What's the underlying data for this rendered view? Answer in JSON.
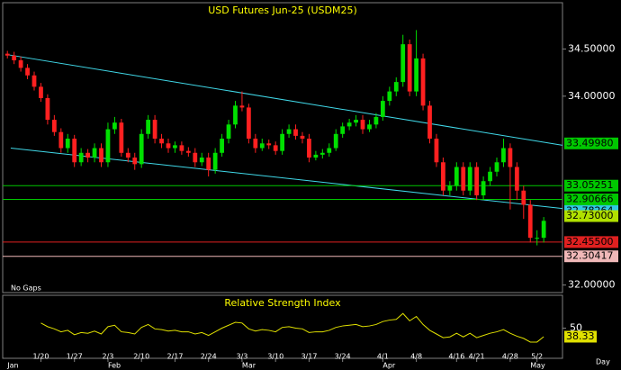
{
  "chart_data": {
    "type": "candlestick",
    "title": "USD Futures Jun-25 (USDM25)",
    "note": "No Gaps",
    "x_axis_label": "Day",
    "categories": [
      null,
      null,
      null,
      null,
      null,
      "1/20",
      null,
      null,
      null,
      null,
      "1/27",
      null,
      null,
      null,
      null,
      "2/3",
      null,
      null,
      null,
      null,
      "2/10",
      null,
      null,
      null,
      null,
      "2/17",
      null,
      null,
      null,
      null,
      "2/24",
      null,
      null,
      null,
      null,
      "3/3",
      null,
      null,
      null,
      null,
      "3/10",
      null,
      null,
      null,
      null,
      "3/17",
      null,
      null,
      null,
      null,
      "3/24",
      null,
      null,
      null,
      null,
      null,
      "4/1",
      null,
      null,
      null,
      null,
      "4/8",
      null,
      null,
      null,
      null,
      null,
      "4/16",
      null,
      null,
      "4/21",
      null,
      null,
      null,
      null,
      "4/28",
      null,
      null,
      null,
      "5/2",
      null
    ],
    "month_categories": [
      "Jan",
      null,
      null,
      null,
      null,
      null,
      null,
      null,
      null,
      null,
      null,
      null,
      null,
      null,
      null,
      "Feb",
      null,
      null,
      null,
      null,
      null,
      null,
      null,
      null,
      null,
      null,
      null,
      null,
      null,
      null,
      null,
      null,
      null,
      null,
      null,
      "Mar",
      null,
      null,
      null,
      null,
      null,
      null,
      null,
      null,
      null,
      null,
      null,
      null,
      null,
      null,
      null,
      null,
      null,
      null,
      null,
      null,
      "Apr",
      null,
      null,
      null,
      null,
      null,
      null,
      null,
      null,
      null,
      null,
      null,
      null,
      null,
      null,
      null,
      null,
      null,
      null,
      null,
      null,
      null,
      "May",
      null,
      null
    ],
    "open": [
      34.45,
      34.43,
      34.38,
      34.3,
      34.22,
      34.1,
      33.98,
      33.75,
      33.62,
      33.45,
      33.55,
      33.3,
      33.4,
      33.35,
      33.45,
      33.3,
      33.65,
      33.72,
      33.4,
      33.35,
      33.28,
      33.6,
      33.75,
      33.55,
      33.5,
      33.45,
      33.48,
      33.42,
      33.4,
      33.3,
      33.35,
      33.22,
      33.4,
      33.55,
      33.7,
      33.9,
      33.88,
      33.55,
      33.45,
      33.5,
      33.48,
      33.42,
      33.6,
      33.65,
      33.58,
      33.55,
      33.35,
      33.38,
      33.4,
      33.45,
      33.6,
      33.68,
      33.72,
      33.75,
      33.65,
      33.7,
      33.78,
      33.95,
      34.05,
      34.15,
      34.55,
      34.05,
      34.4,
      33.9,
      33.55,
      33.3,
      33.0,
      33.05,
      33.25,
      33.0,
      33.25,
      32.95,
      33.1,
      33.2,
      33.3,
      33.45,
      33.25,
      33.0,
      32.85,
      32.5,
      32.5
    ],
    "high": [
      34.48,
      34.47,
      34.42,
      34.34,
      34.26,
      34.14,
      34.02,
      33.8,
      33.66,
      33.6,
      33.59,
      33.45,
      33.44,
      33.5,
      33.5,
      33.72,
      33.78,
      33.76,
      33.45,
      33.4,
      33.65,
      33.8,
      33.8,
      33.6,
      33.55,
      33.52,
      33.52,
      33.46,
      33.45,
      33.4,
      33.4,
      33.45,
      33.6,
      33.75,
      33.95,
      34.05,
      33.92,
      33.6,
      33.55,
      33.54,
      33.52,
      33.65,
      33.7,
      33.7,
      33.62,
      33.6,
      33.42,
      33.44,
      33.5,
      33.65,
      33.72,
      33.76,
      33.8,
      33.8,
      33.75,
      33.82,
      34.0,
      34.1,
      34.2,
      34.65,
      34.6,
      34.7,
      34.45,
      33.95,
      33.6,
      33.35,
      33.1,
      33.3,
      33.3,
      33.3,
      33.3,
      33.15,
      33.25,
      33.35,
      33.55,
      33.5,
      33.3,
      33.05,
      32.9,
      32.58,
      32.72
    ],
    "low": [
      34.4,
      34.34,
      34.26,
      34.18,
      34.06,
      33.94,
      33.7,
      33.58,
      33.4,
      33.4,
      33.25,
      33.26,
      33.3,
      33.3,
      33.25,
      33.25,
      33.6,
      33.36,
      33.3,
      33.22,
      33.24,
      33.55,
      33.5,
      33.45,
      33.4,
      33.4,
      33.38,
      33.36,
      33.25,
      33.26,
      33.15,
      33.18,
      33.36,
      33.5,
      33.66,
      33.84,
      33.5,
      33.4,
      33.42,
      33.44,
      33.38,
      33.38,
      33.56,
      33.54,
      33.5,
      33.3,
      33.32,
      33.34,
      33.36,
      33.42,
      33.56,
      33.64,
      33.68,
      33.6,
      33.62,
      33.66,
      33.74,
      33.9,
      34.0,
      34.1,
      34.0,
      34.0,
      33.85,
      33.5,
      33.25,
      32.95,
      32.95,
      33.0,
      32.95,
      32.95,
      32.9,
      32.9,
      33.05,
      33.15,
      33.25,
      32.8,
      32.9,
      32.7,
      32.45,
      32.42,
      32.45
    ],
    "close": [
      34.43,
      34.38,
      34.3,
      34.22,
      34.1,
      33.98,
      33.75,
      33.62,
      33.45,
      33.55,
      33.3,
      33.4,
      33.35,
      33.45,
      33.3,
      33.65,
      33.72,
      33.4,
      33.35,
      33.28,
      33.6,
      33.75,
      33.55,
      33.5,
      33.45,
      33.48,
      33.42,
      33.4,
      33.3,
      33.35,
      33.22,
      33.4,
      33.55,
      33.7,
      33.9,
      33.88,
      33.55,
      33.45,
      33.5,
      33.48,
      33.42,
      33.6,
      33.65,
      33.58,
      33.55,
      33.35,
      33.38,
      33.4,
      33.45,
      33.6,
      33.68,
      33.72,
      33.75,
      33.65,
      33.7,
      33.78,
      33.95,
      34.05,
      34.15,
      34.55,
      34.05,
      34.4,
      33.9,
      33.55,
      33.3,
      33.0,
      33.05,
      33.25,
      33.0,
      33.25,
      32.95,
      33.1,
      33.2,
      33.3,
      33.45,
      33.25,
      33.0,
      32.85,
      32.5,
      32.5,
      32.68
    ],
    "up_color": "#00e000",
    "down_color": "#ff2020",
    "xlim": [
      -0.7,
      82.8
    ],
    "ylim": [
      31.92,
      34.99
    ],
    "yticks": [
      {
        "value": 32,
        "label": "32.00000"
      },
      {
        "value": 34,
        "label": "34.00000"
      },
      {
        "value": 34.5,
        "label": "34.50000"
      }
    ],
    "levels": [
      {
        "value": 33.4998,
        "label": "33.49980",
        "color": "#00c800",
        "line": false
      },
      {
        "value": 33.05251,
        "label": "33.05251",
        "color": "#00c800",
        "line": true
      },
      {
        "value": 32.90666,
        "label": "32.90666",
        "color": "#00c800",
        "line": true
      },
      {
        "value": 32.78264,
        "label": "32.78264",
        "color": "#30c8e0",
        "line": false
      },
      {
        "value": 32.73,
        "label": "32.73000",
        "color": "#b0e000",
        "line": false
      },
      {
        "value": 32.455,
        "label": "32.45500",
        "color": "#e02020",
        "line": true
      },
      {
        "value": 32.30417,
        "label": "32.30417",
        "color": "#f0b8b8",
        "line": true
      }
    ],
    "trendlines": [
      {
        "color": "#40d8e8",
        "x": [
          0,
          82.8
        ],
        "y": [
          34.44,
          33.48
        ]
      },
      {
        "color": "#40d8e8",
        "x": [
          0.5,
          82.8
        ],
        "y": [
          33.45,
          32.81
        ]
      }
    ],
    "indicator": {
      "title": "Relative Strength Index",
      "color": "#e0e000",
      "ylim": [
        10,
        90
      ],
      "yticks": [
        50
      ],
      "values": [
        null,
        null,
        null,
        null,
        null,
        57,
        52,
        49,
        45,
        47,
        41,
        44,
        43,
        46,
        42,
        52,
        54,
        45,
        44,
        42,
        51,
        55,
        49,
        48,
        46,
        47,
        45,
        45,
        42,
        44,
        40,
        45,
        50,
        54,
        58,
        57,
        49,
        46,
        48,
        47,
        45,
        51,
        52,
        50,
        49,
        44,
        45,
        45,
        47,
        51,
        53,
        54,
        55,
        52,
        53,
        55,
        59,
        61,
        62,
        70,
        60,
        66,
        55,
        47,
        42,
        37,
        38,
        43,
        38,
        43,
        37,
        40,
        43,
        45,
        48,
        43,
        39,
        36,
        31,
        31,
        38.33
      ]
    }
  }
}
